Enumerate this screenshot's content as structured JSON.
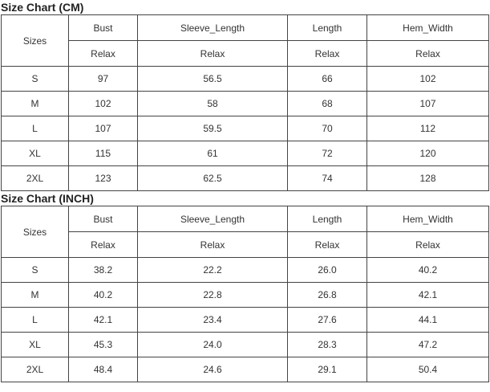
{
  "tables": [
    {
      "title": "Size Chart (CM)",
      "headers": {
        "sizes": "Sizes",
        "columns": [
          "Bust",
          "Sleeve_Length",
          "Length",
          "Hem_Width"
        ],
        "subheaders": [
          "Relax",
          "Relax",
          "Relax",
          "Relax"
        ]
      },
      "rows": [
        [
          "S",
          "97",
          "56.5",
          "66",
          "102"
        ],
        [
          "M",
          "102",
          "58",
          "68",
          "107"
        ],
        [
          "L",
          "107",
          "59.5",
          "70",
          "112"
        ],
        [
          "XL",
          "115",
          "61",
          "72",
          "120"
        ],
        [
          "2XL",
          "123",
          "62.5",
          "74",
          "128"
        ]
      ]
    },
    {
      "title": "Size Chart (INCH)",
      "headers": {
        "sizes": "Sizes",
        "columns": [
          "Bust",
          "Sleeve_Length",
          "Length",
          "Hem_Width"
        ],
        "subheaders": [
          "Relax",
          "Relax",
          "Relax",
          "Relax"
        ]
      },
      "rows": [
        [
          "S",
          "38.2",
          "22.2",
          "26.0",
          "40.2"
        ],
        [
          "M",
          "40.2",
          "22.8",
          "26.8",
          "42.1"
        ],
        [
          "L",
          "42.1",
          "23.4",
          "27.6",
          "44.1"
        ],
        [
          "XL",
          "45.3",
          "24.0",
          "28.3",
          "47.2"
        ],
        [
          "2XL",
          "48.4",
          "24.6",
          "29.1",
          "50.4"
        ]
      ]
    }
  ]
}
